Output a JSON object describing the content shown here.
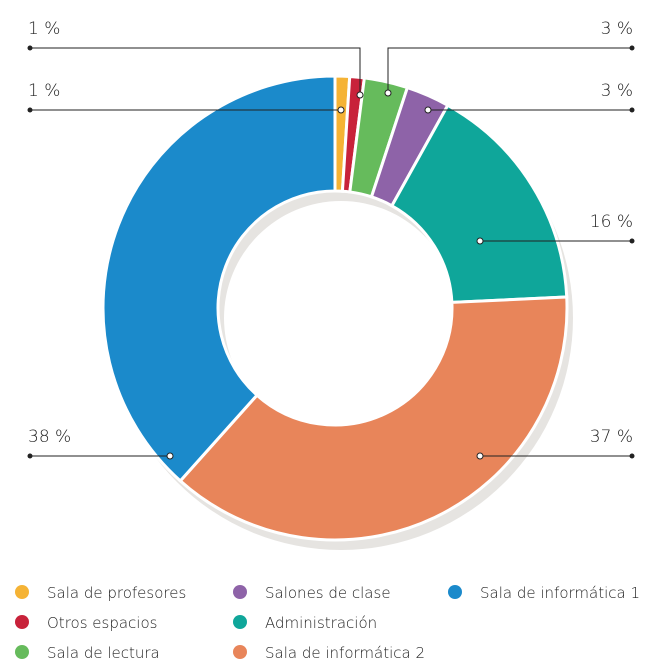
{
  "chart_data": {
    "type": "pie",
    "categories": [
      "Sala de profesores",
      "Otros espacios",
      "Sala de lectura",
      "Salones de clase",
      "Administración",
      "Sala de informática 2",
      "Sala de informática 1"
    ],
    "values": [
      1,
      1,
      3,
      3,
      16,
      37,
      38
    ],
    "value_labels": [
      "1 %",
      "1 %",
      "3 %",
      "3 %",
      "16 %",
      "37 %",
      "38 %"
    ],
    "colors": [
      "#f5b335",
      "#c8223a",
      "#66bb5c",
      "#8e63a8",
      "#0fa69a",
      "#e8855a",
      "#1b8acb"
    ]
  }
}
